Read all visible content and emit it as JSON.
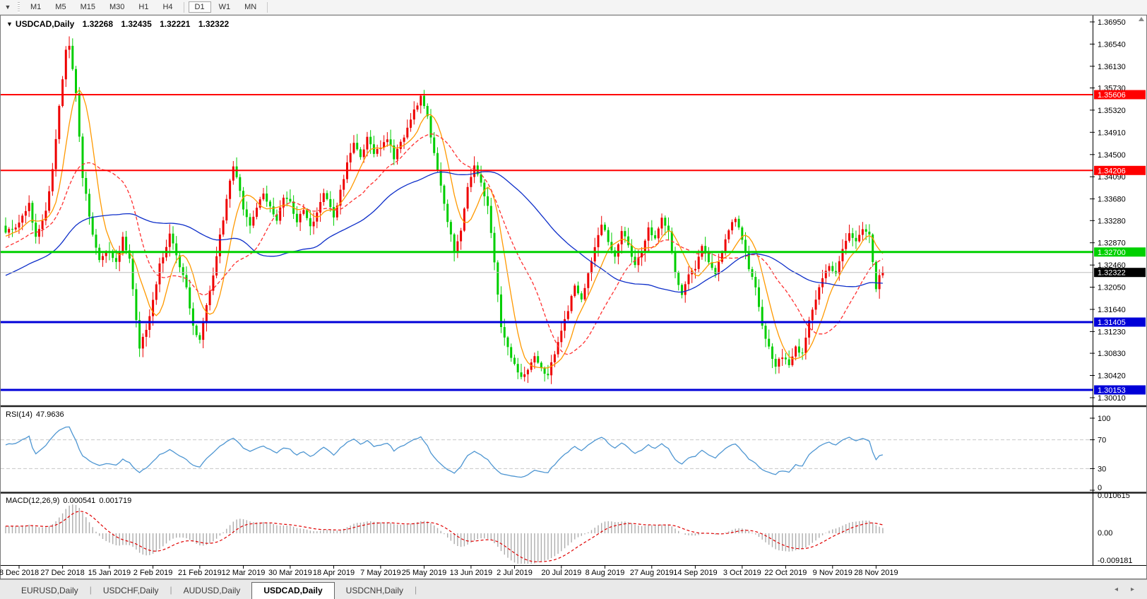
{
  "toolbar": {
    "dropdown_icon": "▼",
    "timeframes": [
      "M1",
      "M5",
      "M15",
      "M30",
      "H1",
      "H4",
      "D1",
      "W1",
      "MN"
    ],
    "active": "D1",
    "separators_after": [
      "H4",
      "MN"
    ]
  },
  "chart": {
    "title_symbol": "USDCAD,Daily",
    "title_icon": "▼",
    "ohlc": {
      "open": "1.32268",
      "high": "1.32435",
      "low": "1.32221",
      "close": "1.32322"
    }
  },
  "rsi": {
    "label": "RSI(14)",
    "value": "47.9636"
  },
  "macd": {
    "label": "MACD(12,26,9)",
    "value_main": "0.000541",
    "value_signal": "0.001719"
  },
  "tabs": {
    "items": [
      "EURUSD,Daily",
      "USDCHF,Daily",
      "AUDUSD,Daily",
      "USDCAD,Daily",
      "USDCNH,Daily"
    ],
    "active": "USDCAD,Daily",
    "left_arrow": "◂",
    "right_arrow": "▸"
  },
  "chart_data": {
    "type": "candlestick",
    "symbol": "USDCAD",
    "timeframe": "Daily",
    "x_labels": [
      "8 Dec 2018",
      "27 Dec 2018",
      "15 Jan 2019",
      "2 Feb 2019",
      "21 Feb 2019",
      "12 Mar 2019",
      "30 Mar 2019",
      "18 Apr 2019",
      "7 May 2019",
      "25 May 2019",
      "13 Jun 2019",
      "2 Jul 2019",
      "20 Jul 2019",
      "8 Aug 2019",
      "27 Aug 2019",
      "14 Sep 2019",
      "3 Oct 2019",
      "22 Oct 2019",
      "9 Nov 2019",
      "28 Nov 2019"
    ],
    "y_ticks": [
      "1.36950",
      "1.36540",
      "1.36130",
      "1.35730",
      "1.35320",
      "1.34910",
      "1.34500",
      "1.34090",
      "1.33680",
      "1.33280",
      "1.32870",
      "1.32460",
      "1.32050",
      "1.31640",
      "1.31230",
      "1.30830",
      "1.30420",
      "1.30010"
    ],
    "ylim": [
      1.29879,
      1.37067
    ],
    "bars": 263,
    "bar_label_positions": [
      4,
      17,
      31,
      44,
      58,
      71,
      85,
      98,
      112,
      125,
      139,
      152,
      166,
      179,
      193,
      206,
      220,
      233,
      247,
      260
    ],
    "price_anchors": [
      [
        0,
        1.331
      ],
      [
        4,
        1.332
      ],
      [
        7,
        1.3362
      ],
      [
        9,
        1.3295
      ],
      [
        12,
        1.3345
      ],
      [
        14,
        1.342
      ],
      [
        16,
        1.354
      ],
      [
        18,
        1.3642
      ],
      [
        19,
        1.3655
      ],
      [
        21,
        1.356
      ],
      [
        23,
        1.341
      ],
      [
        26,
        1.33
      ],
      [
        28,
        1.3258
      ],
      [
        31,
        1.3272
      ],
      [
        33,
        1.3248
      ],
      [
        35,
        1.33
      ],
      [
        37,
        1.3255
      ],
      [
        40,
        1.3092
      ],
      [
        42,
        1.313
      ],
      [
        44,
        1.318
      ],
      [
        46,
        1.3245
      ],
      [
        49,
        1.33
      ],
      [
        52,
        1.3245
      ],
      [
        54,
        1.3205
      ],
      [
        56,
        1.313
      ],
      [
        58,
        1.3108
      ],
      [
        60,
        1.317
      ],
      [
        62,
        1.3225
      ],
      [
        64,
        1.33
      ],
      [
        66,
        1.3365
      ],
      [
        68,
        1.343
      ],
      [
        70,
        1.3385
      ],
      [
        71,
        1.335
      ],
      [
        73,
        1.3322
      ],
      [
        75,
        1.3348
      ],
      [
        77,
        1.3382
      ],
      [
        79,
        1.3352
      ],
      [
        81,
        1.3332
      ],
      [
        83,
        1.3372
      ],
      [
        85,
        1.336
      ],
      [
        87,
        1.3324
      ],
      [
        89,
        1.3352
      ],
      [
        91,
        1.3314
      ],
      [
        93,
        1.3342
      ],
      [
        95,
        1.3378
      ],
      [
        97,
        1.335
      ],
      [
        98,
        1.3335
      ],
      [
        100,
        1.3382
      ],
      [
        102,
        1.3432
      ],
      [
        104,
        1.3472
      ],
      [
        106,
        1.3442
      ],
      [
        108,
        1.3482
      ],
      [
        110,
        1.3452
      ],
      [
        112,
        1.3465
      ],
      [
        114,
        1.3482
      ],
      [
        116,
        1.3445
      ],
      [
        118,
        1.3472
      ],
      [
        120,
        1.3495
      ],
      [
        122,
        1.353
      ],
      [
        124,
        1.3558
      ],
      [
        126,
        1.352
      ],
      [
        128,
        1.3452
      ],
      [
        130,
        1.3392
      ],
      [
        132,
        1.333
      ],
      [
        134,
        1.3268
      ],
      [
        136,
        1.3312
      ],
      [
        138,
        1.339
      ],
      [
        140,
        1.3432
      ],
      [
        142,
        1.3398
      ],
      [
        144,
        1.3355
      ],
      [
        146,
        1.3252
      ],
      [
        148,
        1.3135
      ],
      [
        150,
        1.3092
      ],
      [
        152,
        1.3062
      ],
      [
        154,
        1.3038
      ],
      [
        156,
        1.3052
      ],
      [
        158,
        1.3082
      ],
      [
        160,
        1.3052
      ],
      [
        162,
        1.3042
      ],
      [
        164,
        1.3082
      ],
      [
        166,
        1.3122
      ],
      [
        168,
        1.3162
      ],
      [
        170,
        1.3208
      ],
      [
        172,
        1.3185
      ],
      [
        174,
        1.3228
      ],
      [
        176,
        1.3275
      ],
      [
        178,
        1.3322
      ],
      [
        180,
        1.3292
      ],
      [
        182,
        1.3262
      ],
      [
        184,
        1.3312
      ],
      [
        186,
        1.3282
      ],
      [
        188,
        1.3242
      ],
      [
        190,
        1.3272
      ],
      [
        192,
        1.3312
      ],
      [
        194,
        1.3292
      ],
      [
        196,
        1.3332
      ],
      [
        198,
        1.3305
      ],
      [
        200,
        1.3232
      ],
      [
        202,
        1.3195
      ],
      [
        204,
        1.3225
      ],
      [
        206,
        1.3242
      ],
      [
        208,
        1.3282
      ],
      [
        210,
        1.3252
      ],
      [
        212,
        1.3232
      ],
      [
        214,
        1.3272
      ],
      [
        216,
        1.3312
      ],
      [
        218,
        1.3335
      ],
      [
        220,
        1.3292
      ],
      [
        222,
        1.3242
      ],
      [
        224,
        1.3202
      ],
      [
        226,
        1.3132
      ],
      [
        228,
        1.3092
      ],
      [
        230,
        1.3062
      ],
      [
        232,
        1.3078
      ],
      [
        234,
        1.3062
      ],
      [
        236,
        1.3092
      ],
      [
        238,
        1.3082
      ],
      [
        240,
        1.3142
      ],
      [
        242,
        1.3182
      ],
      [
        244,
        1.3225
      ],
      [
        246,
        1.3242
      ],
      [
        248,
        1.3232
      ],
      [
        250,
        1.3272
      ],
      [
        252,
        1.3302
      ],
      [
        254,
        1.3292
      ],
      [
        256,
        1.3312
      ],
      [
        258,
        1.3302
      ],
      [
        259,
        1.3252
      ],
      [
        260,
        1.3202
      ],
      [
        261,
        1.32268
      ],
      [
        262,
        1.32322
      ]
    ],
    "last_candle": {
      "open": 1.32268,
      "high": 1.32435,
      "low": 1.32221,
      "close": 1.32322
    },
    "prehistory": {
      "bars": 55,
      "start": 1.314,
      "end": 1.331,
      "noise": 0.003
    },
    "noise": 0.0009,
    "wick": 0.0016,
    "up_color": "#EE0000",
    "down_color": "#00CE00",
    "overlays": {
      "hlines": [
        {
          "price": 1.35606,
          "label": "1.35606",
          "color": "#FF0000",
          "width": 2
        },
        {
          "price": 1.34206,
          "label": "1.34206",
          "color": "#FF0000",
          "width": 2
        },
        {
          "price": 1.327,
          "label": "1.32700",
          "color": "#00D000",
          "width": 3
        },
        {
          "price": 1.31405,
          "label": "1.31405",
          "color": "#0000D8",
          "width": 3
        },
        {
          "price": 1.30153,
          "label": "1.30153",
          "color": "#0000D8",
          "width": 3
        }
      ],
      "current_price": {
        "price": 1.32322,
        "label": "1.32322",
        "line_color": "#BEBEBE",
        "chip_bg": "#000000"
      },
      "moving_averages": [
        {
          "period": 8,
          "color": "#FF9900",
          "style": "solid"
        },
        {
          "period": 21,
          "color": "#FF3030",
          "style": "dash"
        },
        {
          "period": 55,
          "color": "#0D2EC9",
          "style": "solid"
        }
      ]
    },
    "panes": {
      "rsi": {
        "period": 14,
        "value": 47.9636,
        "levels": [
          70,
          30
        ],
        "axis_labels": [
          "100",
          "70",
          "30",
          "0"
        ],
        "color": "#4E96D2"
      },
      "macd": {
        "fast": 12,
        "slow": 26,
        "signal": 9,
        "value_main": 0.000541,
        "value_signal": 0.001719,
        "axis_labels": [
          "0.010615",
          "0.00",
          "-0.009181"
        ],
        "hist_color": "#ADADAD",
        "signal_color": "#E00000"
      }
    }
  }
}
